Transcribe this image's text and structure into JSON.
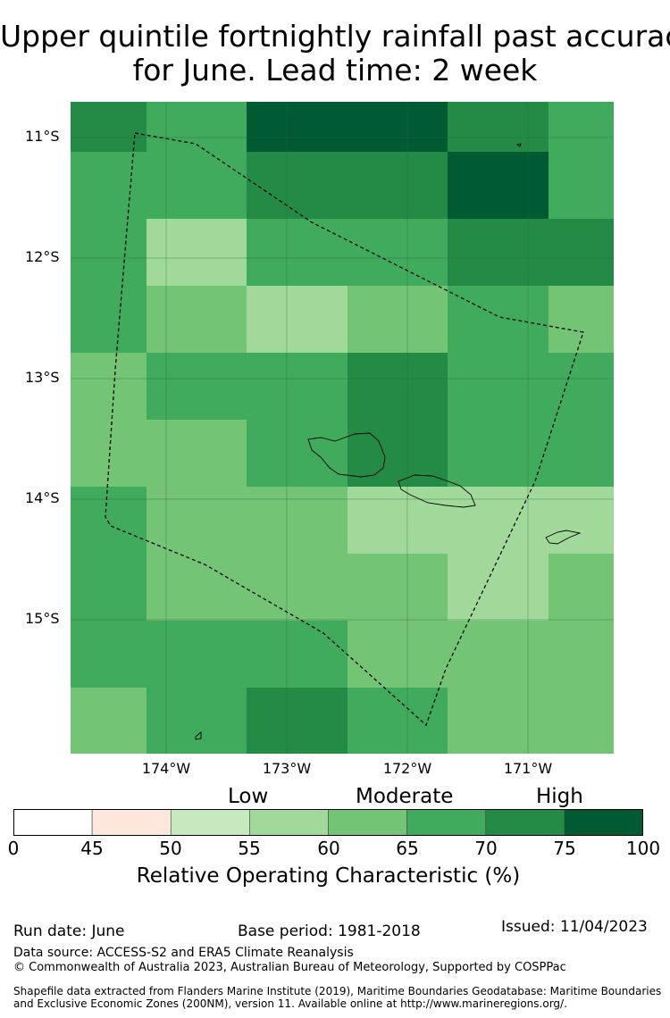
{
  "title_line1": "Upper quintile fortnightly rainfall past accuracy",
  "title_line2": "for June. Lead time: 2 week",
  "map": {
    "lat_labels": [
      "11°S",
      "12°S",
      "13°S",
      "14°S",
      "15°S"
    ],
    "lon_labels": [
      "174°W",
      "173°W",
      "172°W",
      "171°W"
    ],
    "grid_values": [
      [
        70,
        65,
        75,
        75,
        70,
        65
      ],
      [
        65,
        65,
        70,
        70,
        75,
        65
      ],
      [
        65,
        55,
        65,
        65,
        70,
        70
      ],
      [
        65,
        60,
        55,
        60,
        65,
        60
      ],
      [
        60,
        65,
        65,
        70,
        65,
        65
      ],
      [
        60,
        60,
        65,
        70,
        65,
        65
      ],
      [
        65,
        60,
        60,
        55,
        55,
        55
      ],
      [
        65,
        60,
        60,
        60,
        55,
        60
      ],
      [
        65,
        65,
        65,
        60,
        60,
        60
      ],
      [
        60,
        65,
        70,
        65,
        60,
        60
      ]
    ]
  },
  "colorbar": {
    "categories": [
      "Low",
      "Moderate",
      "High"
    ],
    "ticks": [
      "0",
      "45",
      "50",
      "55",
      "60",
      "65",
      "70",
      "75",
      "100"
    ],
    "colors": [
      "#ffffff",
      "#fee8de",
      "#c7e9c0",
      "#a1d99b",
      "#74c476",
      "#41ab5d",
      "#238b45",
      "#005a32"
    ],
    "title": "Relative Operating Characteristic (%)"
  },
  "footer": {
    "run_date": "Run date: June",
    "base_period": "Base period: 1981-2018",
    "issued": "Issued: 11/04/2023",
    "data_source": "Data source: ACCESS-S2 and ERA5 Climate Reanalysis",
    "copyright": "© Commonwealth of Australia 2023, Australian Bureau of Meteorology, Supported by COSPPac",
    "shapefile_line1": "Shapefile data extracted from Flanders Marine Institute (2019), Maritime Boundaries Geodatabase: Maritime Boundaries",
    "shapefile_line2": "and Exclusive Economic Zones (200NM), version 11. Available online at http://www.marineregions.org/."
  }
}
